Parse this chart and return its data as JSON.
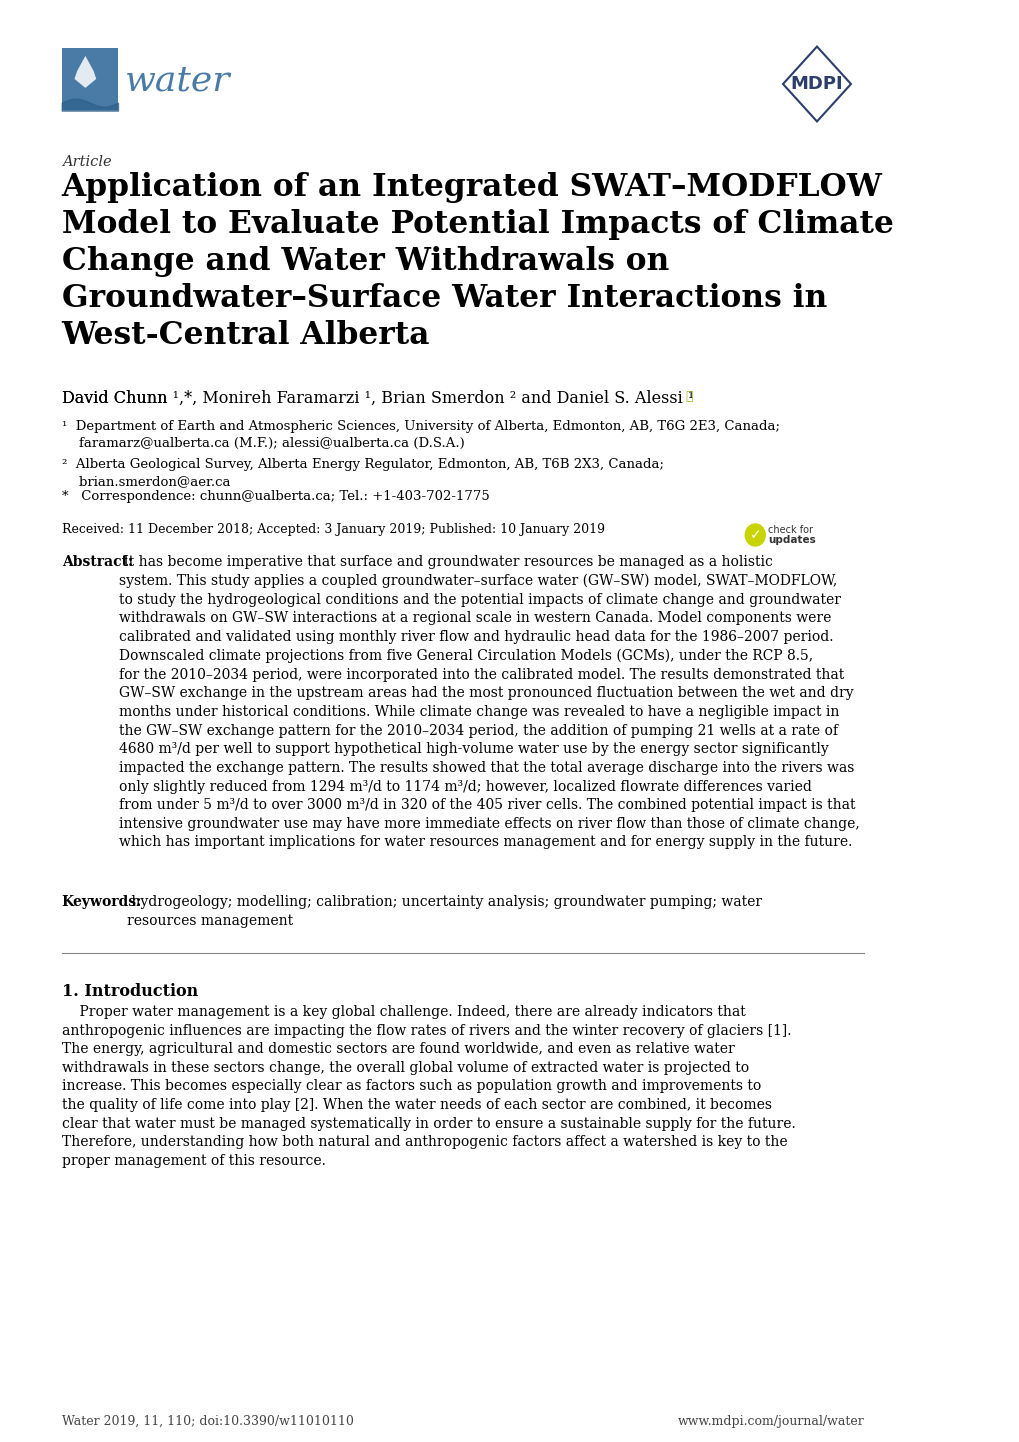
{
  "bg_color": "#ffffff",
  "text_color": "#000000",
  "article_label": "Article",
  "title": "Application of an Integrated SWAT–MODFLOW\nModel to Evaluate Potential Impacts of Climate\nChange and Water Withdrawals on\nGroundwater–Surface Water Interactions in\nWest-Central Alberta",
  "authors": "David Chunn ¹,*, Monireh Faramarzi ¹, Brian Smerdon ² and Daniel S. Alessi ¹",
  "affil1": "¹   Department of Earth and Atmospheric Sciences, University of Alberta, Edmonton, AB, T6G 2E3, Canada;\n    faramarz@ualberta.ca (M.F.); alessi@ualberta.ca (D.S.A.)",
  "affil2": "²   Alberta Geological Survey, Alberta Energy Regulator, Edmonton, AB, T6B 2X3, Canada;\n    brian.smerdon@aer.ca",
  "affil3": "*   Correspondence: chunn@ualberta.ca; Tel.: +1-403-702-1775",
  "received": "Received: 11 December 2018; Accepted: 3 January 2019; Published: 10 January 2019",
  "abstract_label": "Abstract:",
  "abstract_text": " It has become imperative that surface and groundwater resources be managed as a holistic system. This study applies a coupled groundwater–surface water (GW–SW) model, SWAT–MODFLOW, to study the hydrogeological conditions and the potential impacts of climate change and groundwater withdrawals on GW–SW interactions at a regional scale in western Canada. Model components were calibrated and validated using monthly river flow and hydraulic head data for the 1986–2007 period. Downscaled climate projections from five General Circulation Models (GCMs), under the RCP 8.5, for the 2010–2034 period, were incorporated into the calibrated model. The results demonstrated that GW–SW exchange in the upstream areas had the most pronounced fluctuation between the wet and dry months under historical conditions. While climate change was revealed to have a negligible impact in the GW–SW exchange pattern for the 2010–2034 period, the addition of pumping 21 wells at a rate of 4680 m³/d per well to support hypothetical high-volume water use by the energy sector significantly impacted the exchange pattern. The results showed that the total average discharge into the rivers was only slightly reduced from 1294 m³/d to 1174 m³/d; however, localized flowrate differences varied from under 5 m³/d to over 3000 m³/d in 320 of the 405 river cells. The combined potential impact is that intensive groundwater use may have more immediate effects on river flow than those of climate change, which has important implications for water resources management and for energy supply in the future.",
  "keywords_label": "Keywords:",
  "keywords_text": " hydrogeology; modelling; calibration; uncertainty analysis; groundwater pumping; water resources management",
  "section1_title": "1. Introduction",
  "section1_text": "Proper water management is a key global challenge. Indeed, there are already indicators that anthropogenic influences are impacting the flow rates of rivers and the winter recovery of glaciers [1]. The energy, agricultural and domestic sectors are found worldwide, and even as relative water withdrawals in these sectors change, the overall global volume of extracted water is projected to increase. This becomes especially clear as factors such as population growth and improvements to the quality of life come into play [2]. When the water needs of each sector are combined, it becomes clear that water must be managed systematically in order to ensure a sustainable supply for the future. Therefore, understanding how both natural and anthropogenic factors affect a watershed is key to the proper management of this resource.",
  "footer_left": "Water 2019, 11, 110; doi:10.3390/w11010110",
  "footer_right": "www.mdpi.com/journal/water",
  "water_logo_color1": "#4a7ba7",
  "water_logo_color2": "#2c5f8a",
  "water_text_color": "#4a7ba7",
  "mdpi_color": "#2c3e6b"
}
